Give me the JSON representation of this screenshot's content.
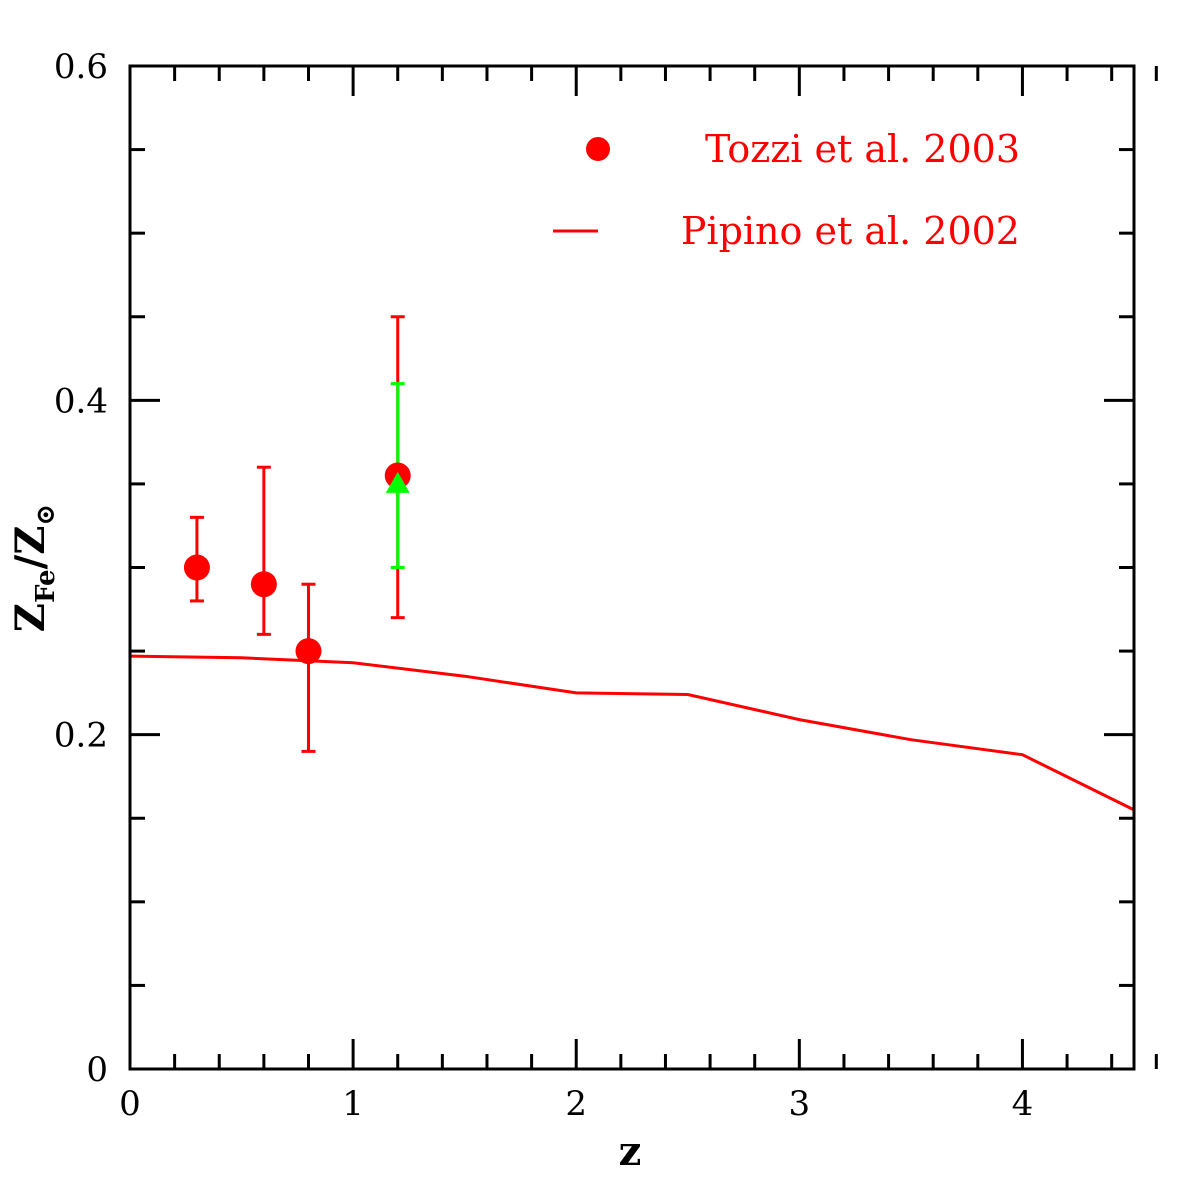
{
  "chart_data": {
    "type": "scatter",
    "title": "",
    "xlabel": "z",
    "ylabel": {
      "main": "Z",
      "sub": "Fe",
      "slash": "/",
      "main2": "Z",
      "sub2": "⊙"
    },
    "xlim": [
      0,
      4.5
    ],
    "ylim": [
      0,
      0.6
    ],
    "x_ticks": [
      {
        "value": 0,
        "label": "0"
      },
      {
        "value": 1,
        "label": "1"
      },
      {
        "value": 2,
        "label": "2"
      },
      {
        "value": 3,
        "label": "3"
      },
      {
        "value": 4,
        "label": "4"
      }
    ],
    "y_ticks": [
      {
        "value": 0,
        "label": "0"
      },
      {
        "value": 0.2,
        "label": "0.2"
      },
      {
        "value": 0.4,
        "label": "0.4"
      },
      {
        "value": 0.6,
        "label": "0.6"
      }
    ],
    "x_minor_step": 0.2,
    "y_minor_step": 0.05,
    "legend_position": "top-right",
    "series": [
      {
        "name": "Tozzi et al. 2003",
        "kind": "points",
        "marker": "circle",
        "color": "#ff0000",
        "points": [
          {
            "x": 0.3,
            "y": 0.3,
            "ylo": 0.28,
            "yhi": 0.33
          },
          {
            "x": 0.6,
            "y": 0.29,
            "ylo": 0.26,
            "yhi": 0.36
          },
          {
            "x": 0.8,
            "y": 0.25,
            "ylo": 0.19,
            "yhi": 0.29
          },
          {
            "x": 1.2,
            "y": 0.355,
            "ylo": 0.27,
            "yhi": 0.45
          }
        ]
      },
      {
        "name": "",
        "kind": "points",
        "marker": "triangle",
        "color": "#00ff00",
        "points": [
          {
            "x": 1.2,
            "y": 0.35,
            "ylo": 0.3,
            "yhi": 0.41
          }
        ]
      },
      {
        "name": "Pipino et al. 2002",
        "kind": "line",
        "color": "#ff0000",
        "points": [
          {
            "x": 0.0,
            "y": 0.247
          },
          {
            "x": 0.5,
            "y": 0.246
          },
          {
            "x": 1.0,
            "y": 0.243
          },
          {
            "x": 1.5,
            "y": 0.235
          },
          {
            "x": 2.0,
            "y": 0.225
          },
          {
            "x": 2.5,
            "y": 0.224
          },
          {
            "x": 3.0,
            "y": 0.209
          },
          {
            "x": 3.5,
            "y": 0.197
          },
          {
            "x": 4.0,
            "y": 0.188
          },
          {
            "x": 4.5,
            "y": 0.155
          }
        ]
      }
    ],
    "legend": [
      {
        "label": "Tozzi et al. 2003",
        "symbol": "circle",
        "color": "#ff0000"
      },
      {
        "label": "Pipino et al. 2002",
        "symbol": "line",
        "color": "#ff0000"
      }
    ]
  }
}
